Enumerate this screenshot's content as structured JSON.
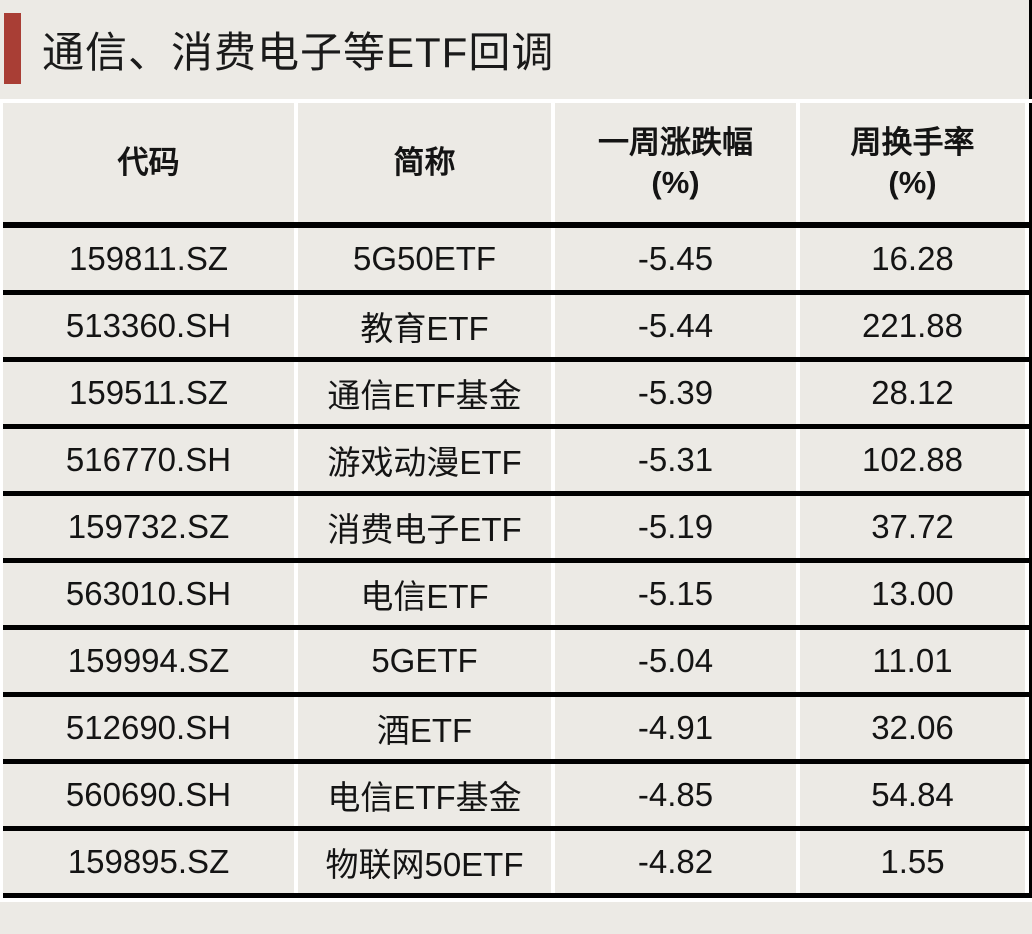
{
  "title": "通信、消费电子等ETF回调",
  "colors": {
    "accent_bar": "#A93E35",
    "panel_background": "#ECEAE5",
    "grid_line": "#000000",
    "column_gap": "#FFFFFF",
    "text": "#141414"
  },
  "chart_data": {
    "type": "table",
    "title": "通信、消费电子等ETF回调",
    "columns": [
      "代码",
      "简称",
      "一周涨跌幅 (%)",
      "周换手率 (%)"
    ],
    "headers": [
      {
        "label": "代码",
        "sub": ""
      },
      {
        "label": "简称",
        "sub": ""
      },
      {
        "label": "一周涨跌幅",
        "sub": "(%)"
      },
      {
        "label": "周换手率",
        "sub": "(%)"
      }
    ],
    "rows": [
      {
        "code": "159811.SZ",
        "name": "5G50ETF",
        "weekly_change_pct": "-5.45",
        "weekly_turnover_pct": "16.28"
      },
      {
        "code": "513360.SH",
        "name": "教育ETF",
        "weekly_change_pct": "-5.44",
        "weekly_turnover_pct": "221.88"
      },
      {
        "code": "159511.SZ",
        "name": "通信ETF基金",
        "weekly_change_pct": "-5.39",
        "weekly_turnover_pct": "28.12"
      },
      {
        "code": "516770.SH",
        "name": "游戏动漫ETF",
        "weekly_change_pct": "-5.31",
        "weekly_turnover_pct": "102.88"
      },
      {
        "code": "159732.SZ",
        "name": "消费电子ETF",
        "weekly_change_pct": "-5.19",
        "weekly_turnover_pct": "37.72"
      },
      {
        "code": "563010.SH",
        "name": "电信ETF",
        "weekly_change_pct": "-5.15",
        "weekly_turnover_pct": "13.00"
      },
      {
        "code": "159994.SZ",
        "name": "5GETF",
        "weekly_change_pct": "-5.04",
        "weekly_turnover_pct": "11.01"
      },
      {
        "code": "512690.SH",
        "name": "酒ETF",
        "weekly_change_pct": "-4.91",
        "weekly_turnover_pct": "32.06"
      },
      {
        "code": "560690.SH",
        "name": "电信ETF基金",
        "weekly_change_pct": "-4.85",
        "weekly_turnover_pct": "54.84"
      },
      {
        "code": "159895.SZ",
        "name": "物联网50ETF",
        "weekly_change_pct": "-4.82",
        "weekly_turnover_pct": "1.55"
      }
    ]
  }
}
